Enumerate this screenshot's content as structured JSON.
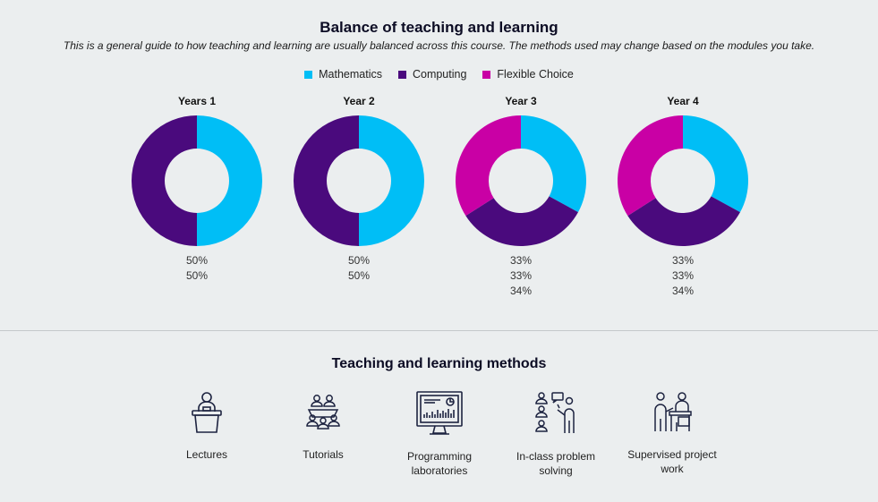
{
  "header": {
    "title": "Balance of teaching and learning",
    "subtitle": "This is a general guide to how teaching and learning are usually balanced across this course. The methods used may change based on the modules you take."
  },
  "legend": [
    {
      "label": "Mathematics",
      "color": "#00bef6"
    },
    {
      "label": "Computing",
      "color": "#4a0a7d"
    },
    {
      "label": "Flexible Choice",
      "color": "#c900a5"
    }
  ],
  "chart_data": {
    "type": "donut",
    "title": "Balance of teaching and learning",
    "categories": [
      "Mathematics",
      "Computing",
      "Flexible Choice"
    ],
    "charts": [
      {
        "title": "Years 1",
        "values": [
          50,
          50
        ],
        "labels": [
          "50%",
          "50%"
        ]
      },
      {
        "title": "Year 2",
        "values": [
          50,
          50
        ],
        "labels": [
          "50%",
          "50%"
        ]
      },
      {
        "title": "Year 3",
        "values": [
          33,
          33,
          34
        ],
        "labels": [
          "33%",
          "33%",
          "34%"
        ]
      },
      {
        "title": "Year 4",
        "values": [
          33,
          33,
          34
        ],
        "labels": [
          "33%",
          "33%",
          "34%"
        ]
      }
    ]
  },
  "methods": {
    "title": "Teaching and learning methods",
    "items": [
      {
        "label_lines": [
          "Lectures"
        ],
        "icon": "lecture-icon"
      },
      {
        "label_lines": [
          "Tutorials"
        ],
        "icon": "tutorial-icon"
      },
      {
        "label_lines": [
          "Programming",
          "laboratories"
        ],
        "icon": "computer-lab-icon"
      },
      {
        "label_lines": [
          "In-class problem",
          "solving"
        ],
        "icon": "problem-solving-icon"
      },
      {
        "label_lines": [
          "Supervised project",
          "work"
        ],
        "icon": "supervised-project-icon"
      }
    ]
  }
}
